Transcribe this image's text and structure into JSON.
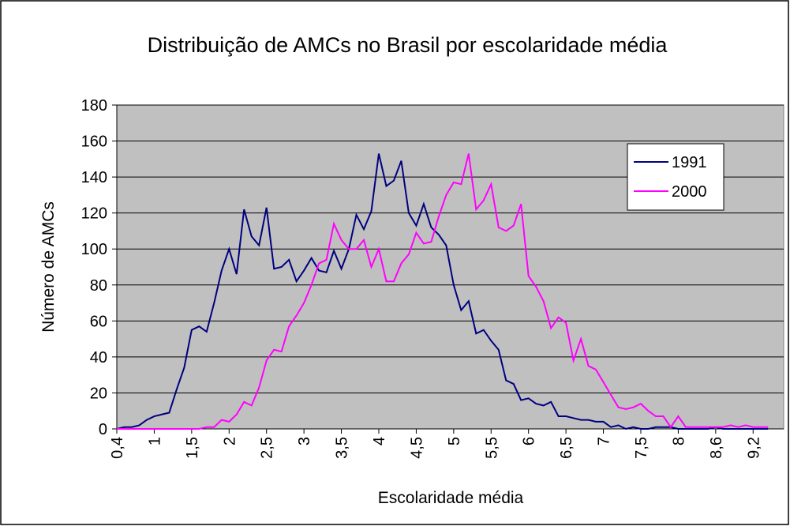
{
  "chart_data": {
    "type": "line",
    "title": "Distribuição de AMCs no Brasil por escolaridade média",
    "x_label": "Escolaridade média",
    "y_label": "Número de AMCs",
    "categories": [
      "0,4",
      null,
      null,
      null,
      null,
      "1",
      null,
      null,
      null,
      null,
      "1,5",
      null,
      null,
      null,
      null,
      "2",
      null,
      null,
      null,
      null,
      "2,5",
      null,
      null,
      null,
      null,
      "3",
      null,
      null,
      null,
      null,
      "3,5",
      null,
      null,
      null,
      null,
      "4",
      null,
      null,
      null,
      null,
      "4,5",
      null,
      null,
      null,
      null,
      "5",
      null,
      null,
      null,
      null,
      "5,5",
      null,
      null,
      null,
      null,
      "6",
      null,
      null,
      null,
      null,
      "6,5",
      null,
      null,
      null,
      null,
      "7",
      null,
      null,
      null,
      null,
      "7,5",
      null,
      null,
      null,
      null,
      "8",
      null,
      null,
      null,
      null,
      "8,6",
      null,
      null,
      null,
      null,
      "9,2",
      null,
      null
    ],
    "series": [
      {
        "name": "1991",
        "color": "#000080",
        "values": [
          0,
          1,
          1,
          2,
          5,
          7,
          8,
          9,
          22,
          34,
          55,
          57,
          54,
          70,
          88,
          100,
          86,
          122,
          107,
          102,
          123,
          89,
          90,
          94,
          82,
          88,
          95,
          88,
          87,
          99,
          89,
          100,
          119,
          111,
          121,
          153,
          135,
          138,
          149,
          120,
          113,
          125,
          112,
          108,
          102,
          80,
          66,
          71,
          53,
          55,
          49,
          44,
          27,
          25,
          16,
          17,
          14,
          13,
          15,
          7,
          7,
          6,
          5,
          5,
          4,
          4,
          1,
          2,
          0,
          1,
          0,
          0,
          1,
          1,
          1,
          0,
          0,
          0,
          0,
          0,
          1,
          0,
          0,
          0,
          0,
          0,
          0,
          0
        ]
      },
      {
        "name": "2000",
        "color": "#ff00ff",
        "values": [
          0,
          0,
          0,
          0,
          0,
          0,
          0,
          0,
          0,
          0,
          0,
          0,
          1,
          1,
          5,
          4,
          8,
          15,
          13,
          23,
          38,
          44,
          43,
          57,
          63,
          70,
          80,
          92,
          94,
          114,
          105,
          100,
          100,
          105,
          90,
          100,
          82,
          82,
          92,
          97,
          109,
          103,
          104,
          118,
          130,
          137,
          136,
          153,
          122,
          127,
          136,
          112,
          110,
          113,
          125,
          85,
          79,
          71,
          56,
          62,
          59,
          38,
          50,
          35,
          33,
          26,
          19,
          12,
          11,
          12,
          14,
          10,
          7,
          7,
          1,
          7,
          1,
          1,
          1,
          1,
          1,
          1,
          2,
          1,
          2,
          1,
          1,
          1
        ]
      }
    ],
    "ylim": [
      0,
      180
    ],
    "yticks": [
      0,
      20,
      40,
      60,
      80,
      100,
      120,
      140,
      160,
      180
    ],
    "grid": true,
    "legend": "top-right"
  }
}
